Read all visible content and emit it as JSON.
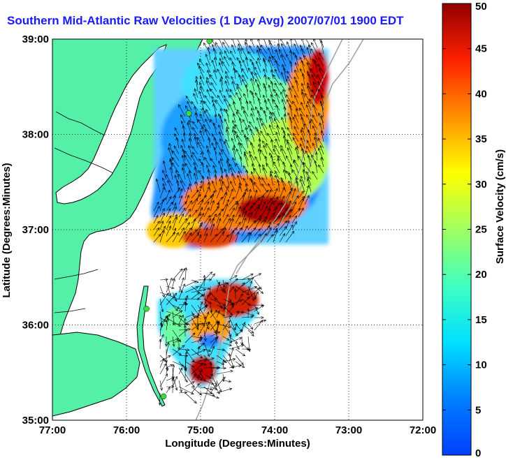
{
  "title": "Southern Mid-Atlantic Raw Velocities (1 Day Avg) 2007/07/01 1900 EDT",
  "map": {
    "xlabel": "Longitude (Degrees:Minutes)",
    "ylabel": "Latitude (Degrees:Minutes)",
    "lon_range": [
      -77,
      -72
    ],
    "lat_range": [
      35,
      39
    ],
    "lon_ticks": [
      {
        "value": -77,
        "label": "77:00"
      },
      {
        "value": -76,
        "label": "76:00"
      },
      {
        "value": -75,
        "label": "75:00"
      },
      {
        "value": -74,
        "label": "74:00"
      },
      {
        "value": -73,
        "label": "73:00"
      },
      {
        "value": -72,
        "label": "72:00"
      }
    ],
    "lat_ticks": [
      {
        "value": 39,
        "label": "39:00"
      },
      {
        "value": 38,
        "label": "38:00"
      },
      {
        "value": 37,
        "label": "37:00"
      },
      {
        "value": 36,
        "label": "36:00"
      },
      {
        "value": 35,
        "label": "35:00"
      }
    ],
    "grid": "dotted",
    "land_color": "#55f0a8",
    "coastline_color": "#000000",
    "isobath_color": "#a0a0a0",
    "station_color": "#3ddc3d",
    "stations_lonlat": [
      [
        -74.88,
        38.98
      ],
      [
        -75.16,
        38.22
      ],
      [
        -75.73,
        36.17
      ],
      [
        -75.5,
        35.25
      ]
    ]
  },
  "colorbar": {
    "label": "Surface Velocity (cm/s)",
    "min": 0,
    "max": 50,
    "ticks": [
      "0",
      "5",
      "10",
      "15",
      "20",
      "25",
      "30",
      "35",
      "40",
      "45",
      "50"
    ],
    "colormap": "jet"
  }
}
